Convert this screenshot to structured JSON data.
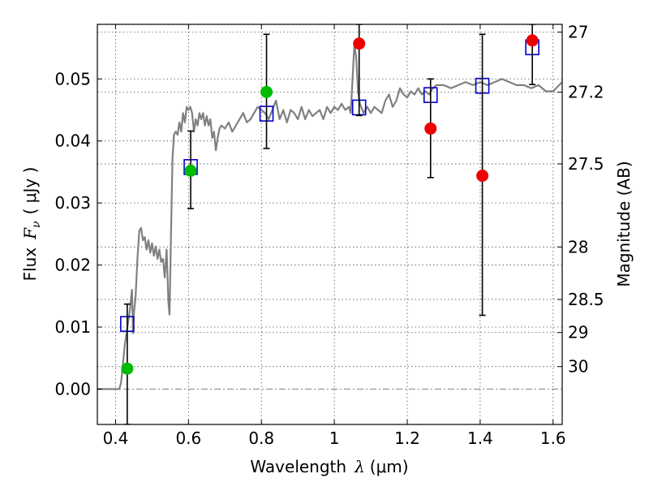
{
  "chart_data": {
    "type": "scatter",
    "xlabel_prefix": "Wavelength",
    "xlabel_symbol": "λ",
    "xlabel_unit": "(μm)",
    "ylabel_prefix": "Flux",
    "ylabel_symbol": "F",
    "ylabel_subscript": "ν",
    "ylabel_unit": "( μJy )",
    "y2label": "Magnitude (AB)",
    "xlim": [
      0.35,
      1.625
    ],
    "ylim": [
      -0.0057,
      0.0588
    ],
    "grid": true,
    "xticks": [
      {
        "value": 0.4,
        "label": "0.4"
      },
      {
        "value": 0.6,
        "label": "0.6"
      },
      {
        "value": 0.8,
        "label": "0.8"
      },
      {
        "value": 1.0,
        "label": "1"
      },
      {
        "value": 1.2,
        "label": "1.2"
      },
      {
        "value": 1.4,
        "label": "1.4"
      },
      {
        "value": 1.6,
        "label": "1.6"
      }
    ],
    "yticks": [
      {
        "value": 0.0,
        "label": "0.00"
      },
      {
        "value": 0.01,
        "label": "0.01"
      },
      {
        "value": 0.02,
        "label": "0.02"
      },
      {
        "value": 0.03,
        "label": "0.03"
      },
      {
        "value": 0.04,
        "label": "0.04"
      },
      {
        "value": 0.05,
        "label": "0.05"
      }
    ],
    "mag_ticks": [
      {
        "value": 27,
        "label": "27"
      },
      {
        "value": 27.2,
        "label": "27.2"
      },
      {
        "value": 27.5,
        "label": "27.5"
      },
      {
        "value": 28,
        "label": "28"
      },
      {
        "value": 28.5,
        "label": "28.5"
      },
      {
        "value": 29,
        "label": "29"
      },
      {
        "value": 30,
        "label": "30"
      }
    ],
    "colors": {
      "spectrum": "#808080",
      "model_box": "#0000cc",
      "detected": "#00bb00",
      "upper": "#ee0000",
      "errorbar": "#000000",
      "zeroline": "#808080"
    },
    "spectrum": [
      [
        0.35,
        0.0
      ],
      [
        0.38,
        0.0
      ],
      [
        0.4,
        0.0
      ],
      [
        0.41,
        0.0
      ],
      [
        0.415,
        0.001
      ],
      [
        0.42,
        0.004
      ],
      [
        0.425,
        0.007
      ],
      [
        0.43,
        0.009
      ],
      [
        0.435,
        0.011
      ],
      [
        0.44,
        0.013
      ],
      [
        0.443,
        0.015
      ],
      [
        0.445,
        0.016
      ],
      [
        0.448,
        0.009
      ],
      [
        0.45,
        0.012
      ],
      [
        0.455,
        0.015
      ],
      [
        0.46,
        0.021
      ],
      [
        0.465,
        0.0255
      ],
      [
        0.47,
        0.026
      ],
      [
        0.475,
        0.024
      ],
      [
        0.48,
        0.0245
      ],
      [
        0.485,
        0.0225
      ],
      [
        0.49,
        0.024
      ],
      [
        0.495,
        0.022
      ],
      [
        0.5,
        0.0235
      ],
      [
        0.505,
        0.0215
      ],
      [
        0.51,
        0.023
      ],
      [
        0.515,
        0.021
      ],
      [
        0.52,
        0.0225
      ],
      [
        0.525,
        0.0205
      ],
      [
        0.53,
        0.021
      ],
      [
        0.535,
        0.018
      ],
      [
        0.54,
        0.0225
      ],
      [
        0.545,
        0.014
      ],
      [
        0.548,
        0.012
      ],
      [
        0.552,
        0.025
      ],
      [
        0.556,
        0.037
      ],
      [
        0.56,
        0.041
      ],
      [
        0.565,
        0.0415
      ],
      [
        0.57,
        0.041
      ],
      [
        0.575,
        0.043
      ],
      [
        0.58,
        0.0415
      ],
      [
        0.585,
        0.0445
      ],
      [
        0.59,
        0.043
      ],
      [
        0.595,
        0.0455
      ],
      [
        0.6,
        0.045
      ],
      [
        0.605,
        0.0455
      ],
      [
        0.61,
        0.0445
      ],
      [
        0.615,
        0.0415
      ],
      [
        0.62,
        0.0435
      ],
      [
        0.625,
        0.0425
      ],
      [
        0.63,
        0.0445
      ],
      [
        0.635,
        0.0435
      ],
      [
        0.64,
        0.0445
      ],
      [
        0.645,
        0.0425
      ],
      [
        0.65,
        0.044
      ],
      [
        0.655,
        0.0425
      ],
      [
        0.66,
        0.0435
      ],
      [
        0.665,
        0.0405
      ],
      [
        0.67,
        0.0415
      ],
      [
        0.675,
        0.0385
      ],
      [
        0.68,
        0.0405
      ],
      [
        0.685,
        0.042
      ],
      [
        0.69,
        0.0425
      ],
      [
        0.7,
        0.042
      ],
      [
        0.71,
        0.043
      ],
      [
        0.72,
        0.0415
      ],
      [
        0.73,
        0.0425
      ],
      [
        0.74,
        0.0435
      ],
      [
        0.75,
        0.0445
      ],
      [
        0.76,
        0.043
      ],
      [
        0.77,
        0.0435
      ],
      [
        0.78,
        0.0445
      ],
      [
        0.79,
        0.0455
      ],
      [
        0.8,
        0.045
      ],
      [
        0.81,
        0.0445
      ],
      [
        0.82,
        0.0435
      ],
      [
        0.83,
        0.045
      ],
      [
        0.84,
        0.0465
      ],
      [
        0.85,
        0.0435
      ],
      [
        0.86,
        0.045
      ],
      [
        0.87,
        0.043
      ],
      [
        0.88,
        0.045
      ],
      [
        0.89,
        0.0445
      ],
      [
        0.9,
        0.0435
      ],
      [
        0.91,
        0.0455
      ],
      [
        0.92,
        0.0435
      ],
      [
        0.93,
        0.045
      ],
      [
        0.94,
        0.044
      ],
      [
        0.95,
        0.0445
      ],
      [
        0.96,
        0.045
      ],
      [
        0.97,
        0.0435
      ],
      [
        0.98,
        0.0455
      ],
      [
        0.99,
        0.0445
      ],
      [
        1.0,
        0.0455
      ],
      [
        1.01,
        0.045
      ],
      [
        1.02,
        0.046
      ],
      [
        1.03,
        0.045
      ],
      [
        1.04,
        0.0455
      ],
      [
        1.045,
        0.0445
      ],
      [
        1.05,
        0.05
      ],
      [
        1.055,
        0.0555
      ],
      [
        1.06,
        0.0535
      ],
      [
        1.065,
        0.048
      ],
      [
        1.07,
        0.046
      ],
      [
        1.08,
        0.0445
      ],
      [
        1.09,
        0.0455
      ],
      [
        1.1,
        0.0445
      ],
      [
        1.11,
        0.0455
      ],
      [
        1.12,
        0.045
      ],
      [
        1.13,
        0.0445
      ],
      [
        1.14,
        0.0465
      ],
      [
        1.15,
        0.0475
      ],
      [
        1.16,
        0.0455
      ],
      [
        1.17,
        0.0465
      ],
      [
        1.18,
        0.0485
      ],
      [
        1.19,
        0.0475
      ],
      [
        1.2,
        0.047
      ],
      [
        1.21,
        0.048
      ],
      [
        1.22,
        0.0475
      ],
      [
        1.23,
        0.0485
      ],
      [
        1.24,
        0.0475
      ],
      [
        1.25,
        0.048
      ],
      [
        1.26,
        0.0475
      ],
      [
        1.27,
        0.0485
      ],
      [
        1.28,
        0.049
      ],
      [
        1.3,
        0.049
      ],
      [
        1.32,
        0.0485
      ],
      [
        1.34,
        0.049
      ],
      [
        1.36,
        0.0495
      ],
      [
        1.38,
        0.049
      ],
      [
        1.4,
        0.0495
      ],
      [
        1.42,
        0.049
      ],
      [
        1.44,
        0.0495
      ],
      [
        1.46,
        0.05
      ],
      [
        1.48,
        0.0495
      ],
      [
        1.5,
        0.049
      ],
      [
        1.52,
        0.049
      ],
      [
        1.54,
        0.0485
      ],
      [
        1.56,
        0.049
      ],
      [
        1.58,
        0.048
      ],
      [
        1.6,
        0.048
      ],
      [
        1.625,
        0.0495
      ]
    ],
    "model_points": [
      {
        "x": 0.432,
        "y": 0.0105
      },
      {
        "x": 0.606,
        "y": 0.0358
      },
      {
        "x": 0.814,
        "y": 0.0444
      },
      {
        "x": 1.068,
        "y": 0.0454
      },
      {
        "x": 1.264,
        "y": 0.0474
      },
      {
        "x": 1.406,
        "y": 0.0489
      },
      {
        "x": 1.543,
        "y": 0.0551
      }
    ],
    "observations": [
      {
        "x": 0.432,
        "y": 0.0033,
        "yerr_low": -0.0057,
        "yerr_high": 0.0137,
        "status": "detected"
      },
      {
        "x": 0.606,
        "y": 0.0352,
        "yerr_low": 0.0291,
        "yerr_high": 0.0416,
        "status": "detected"
      },
      {
        "x": 0.814,
        "y": 0.0479,
        "yerr_low": 0.0388,
        "yerr_high": 0.0572,
        "status": "detected"
      },
      {
        "x": 1.068,
        "y": 0.0557,
        "yerr_low": 0.0441,
        "yerr_high": 0.0588,
        "status": "upper"
      },
      {
        "x": 1.264,
        "y": 0.042,
        "yerr_low": 0.0341,
        "yerr_high": 0.05,
        "status": "upper"
      },
      {
        "x": 1.406,
        "y": 0.0344,
        "yerr_low": 0.0119,
        "yerr_high": 0.0572,
        "status": "upper"
      },
      {
        "x": 1.543,
        "y": 0.0562,
        "yerr_low": 0.0491,
        "yerr_high": 0.0588,
        "status": "upper"
      }
    ]
  }
}
